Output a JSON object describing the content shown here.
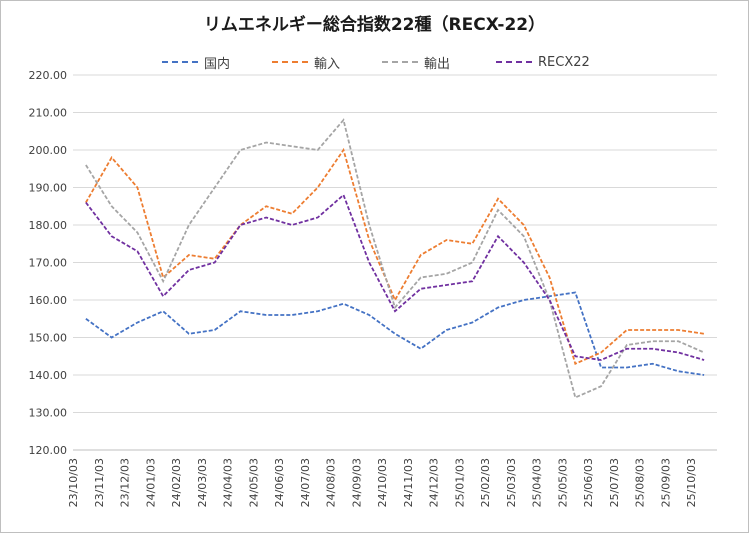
{
  "chart_data": {
    "type": "line",
    "title": "リムエネルギー総合指数22種（RECX-22）",
    "xlabel": "",
    "ylabel": "",
    "ylim": [
      120,
      220
    ],
    "yticks": [
      "120.00",
      "130.00",
      "140.00",
      "150.00",
      "160.00",
      "170.00",
      "180.00",
      "190.00",
      "200.00",
      "210.00",
      "220.00"
    ],
    "x": [
      "23/10/03",
      "23/11/03",
      "23/12/03",
      "24/01/03",
      "24/02/03",
      "24/03/03",
      "24/04/03",
      "24/05/03",
      "24/06/03",
      "24/07/03",
      "24/08/03",
      "24/09/03",
      "24/10/03",
      "24/11/03",
      "24/12/03",
      "25/01/03",
      "25/02/03",
      "25/03/03",
      "25/04/03",
      "25/05/03",
      "25/06/03",
      "25/07/03",
      "25/08/03",
      "25/09/03",
      "25/10/03"
    ],
    "grid": true,
    "legend_position": "top",
    "series": [
      {
        "name": "国内",
        "color": "#4472c4",
        "values": [
          155,
          150,
          154,
          157,
          151,
          152,
          157,
          156,
          156,
          157,
          159,
          156,
          151,
          147,
          152,
          154,
          158,
          160,
          161,
          162,
          142,
          142,
          143,
          141,
          140
        ]
      },
      {
        "name": "輸入",
        "color": "#ed7d31",
        "values": [
          186,
          198,
          190,
          166,
          172,
          171,
          180,
          185,
          183,
          190,
          200,
          176,
          160,
          172,
          176,
          175,
          187,
          180,
          166,
          143,
          146,
          152,
          152,
          152,
          151
        ]
      },
      {
        "name": "輸出",
        "color": "#a5a5a5",
        "values": [
          196,
          185,
          178,
          165,
          180,
          190,
          200,
          202,
          201,
          200,
          208,
          180,
          158,
          166,
          167,
          170,
          184,
          177,
          160,
          134,
          137,
          148,
          149,
          149,
          146
        ]
      },
      {
        "name": "RECX22",
        "color": "#7030a0",
        "values": [
          186,
          177,
          173,
          161,
          168,
          170,
          180,
          182,
          180,
          182,
          188,
          170,
          157,
          163,
          164,
          165,
          177,
          170,
          160,
          145,
          144,
          147,
          147,
          146,
          144
        ]
      }
    ]
  }
}
